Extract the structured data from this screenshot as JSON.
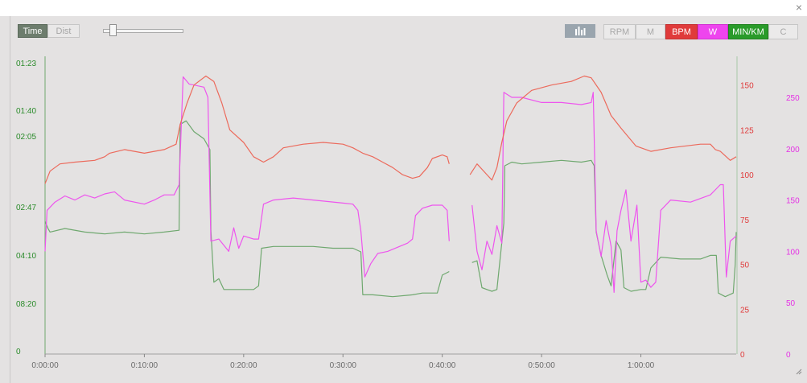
{
  "window": {
    "close_glyph": "×"
  },
  "toolbar": {
    "time_label": "Time",
    "dist_label": "Dist",
    "bars_icon": "bar-chart-icon",
    "metrics": [
      "RPM",
      "M",
      "BPM",
      "W",
      "MIN/KM",
      "C"
    ]
  },
  "colors": {
    "bpm": "#ec6a5c",
    "watts": "#ee55ee",
    "pace": "#6fa86f",
    "bpm_axis": "#e03b3b",
    "watts_axis": "#e530e5",
    "pace_axis": "#2a8b2a"
  },
  "chart_data": {
    "type": "line",
    "x_ticks": [
      "0:00:00",
      "0:10:00",
      "0:20:00",
      "0:30:00",
      "0:40:00",
      "0:50:00",
      "1:00:00"
    ],
    "x_range_minutes": [
      0,
      69.6
    ],
    "grid": false,
    "pace_ticks": [
      "01:23",
      "01:40",
      "02:05",
      "02:47",
      "04:10",
      "08:20",
      "0"
    ],
    "bpm_ticks": [
      "150",
      "125",
      "100",
      "75",
      "50",
      "25",
      "0"
    ],
    "watts_ticks": [
      "250",
      "200",
      "150",
      "100",
      "50",
      "0"
    ],
    "ylim_bpm": [
      0,
      166
    ],
    "ylim_watts": [
      0,
      290
    ],
    "series": [
      {
        "name": "BPM",
        "segments": [
          [
            [
              0,
              95
            ],
            [
              0.5,
              102
            ],
            [
              1.5,
              106
            ],
            [
              3,
              107
            ],
            [
              5,
              108
            ],
            [
              6,
              110
            ],
            [
              6.5,
              112
            ],
            [
              8,
              114
            ],
            [
              10,
              112
            ],
            [
              12,
              114
            ],
            [
              13.2,
              117
            ],
            [
              13.6,
              128
            ],
            [
              14.3,
              140
            ],
            [
              15,
              150
            ],
            [
              16.2,
              155
            ],
            [
              17,
              152
            ],
            [
              17.8,
              140
            ],
            [
              18.6,
              125
            ],
            [
              20,
              118
            ],
            [
              21,
              110
            ],
            [
              22,
              107
            ],
            [
              23,
              110
            ],
            [
              24,
              115
            ],
            [
              26,
              117
            ],
            [
              28,
              118
            ],
            [
              30,
              117
            ],
            [
              31,
              115
            ],
            [
              32,
              112
            ],
            [
              33,
              110
            ],
            [
              34,
              107
            ],
            [
              35,
              104
            ],
            [
              36,
              100
            ],
            [
              37,
              98
            ],
            [
              37.7,
              99
            ],
            [
              38.5,
              104
            ],
            [
              39,
              109
            ],
            [
              40,
              111
            ],
            [
              40.5,
              110
            ],
            [
              40.7,
              106
            ]
          ],
          [
            [
              42.8,
              100
            ],
            [
              43.5,
              106
            ],
            [
              44.5,
              100
            ],
            [
              45,
              97
            ],
            [
              45.5,
              104
            ],
            [
              46,
              118
            ],
            [
              46.5,
              130
            ],
            [
              47.5,
              140
            ],
            [
              49,
              147
            ],
            [
              51,
              150
            ],
            [
              53,
              152
            ],
            [
              54.3,
              155
            ],
            [
              55,
              154
            ],
            [
              56,
              146
            ],
            [
              57,
              133
            ],
            [
              58,
              126
            ],
            [
              59.5,
              116
            ],
            [
              61,
              113
            ],
            [
              63,
              115
            ],
            [
              66,
              117
            ],
            [
              67,
              117
            ],
            [
              67.5,
              114
            ],
            [
              68,
              113
            ],
            [
              69,
              108
            ],
            [
              69.6,
              110
            ]
          ]
        ]
      },
      {
        "name": "W",
        "segments": [
          [
            [
              0,
              100
            ],
            [
              0.2,
              140
            ],
            [
              1,
              148
            ],
            [
              2,
              154
            ],
            [
              3,
              150
            ],
            [
              4,
              155
            ],
            [
              5,
              152
            ],
            [
              6,
              156
            ],
            [
              7,
              158
            ],
            [
              8,
              150
            ],
            [
              10,
              146
            ],
            [
              11,
              150
            ],
            [
              12,
              155
            ],
            [
              13,
              155
            ],
            [
              13.5,
              165
            ],
            [
              13.9,
              270
            ],
            [
              14.5,
              263
            ],
            [
              15,
              262
            ],
            [
              16,
              260
            ],
            [
              16.4,
              250
            ],
            [
              16.7,
              110
            ],
            [
              17.5,
              112
            ],
            [
              18.5,
              100
            ],
            [
              19,
              123
            ],
            [
              19.5,
              103
            ],
            [
              20,
              115
            ],
            [
              21,
              112
            ],
            [
              21.5,
              112
            ],
            [
              22,
              146
            ],
            [
              23,
              150
            ],
            [
              25,
              152
            ],
            [
              27,
              150
            ],
            [
              30,
              147
            ],
            [
              31,
              146
            ],
            [
              31.5,
              140
            ],
            [
              31.8,
              120
            ],
            [
              32.2,
              75
            ],
            [
              32.8,
              88
            ],
            [
              33.5,
              98
            ],
            [
              34.5,
              100
            ],
            [
              35.5,
              104
            ],
            [
              36.5,
              108
            ],
            [
              37,
              112
            ],
            [
              37.3,
              135
            ],
            [
              38,
              142
            ],
            [
              39,
              145
            ],
            [
              40,
              145
            ],
            [
              40.5,
              140
            ],
            [
              40.7,
              110
            ]
          ],
          [
            [
              43,
              145
            ],
            [
              43.5,
              100
            ],
            [
              44,
              82
            ],
            [
              44.5,
              110
            ],
            [
              45,
              97
            ],
            [
              45.5,
              125
            ],
            [
              46,
              108
            ],
            [
              46.2,
              255
            ],
            [
              47,
              250
            ],
            [
              48,
              250
            ],
            [
              50,
              245
            ],
            [
              52,
              245
            ],
            [
              54,
              243
            ],
            [
              55,
              245
            ],
            [
              55.2,
              255
            ],
            [
              55.5,
              120
            ],
            [
              56,
              95
            ],
            [
              56.5,
              130
            ],
            [
              57,
              105
            ],
            [
              57.3,
              60
            ],
            [
              57.6,
              120
            ],
            [
              58,
              140
            ],
            [
              58.5,
              160
            ],
            [
              59,
              110
            ],
            [
              59.6,
              145
            ],
            [
              60,
              70
            ],
            [
              60.5,
              72
            ],
            [
              61,
              65
            ],
            [
              61.5,
              70
            ],
            [
              62,
              140
            ],
            [
              63,
              150
            ],
            [
              65,
              148
            ],
            [
              67,
              155
            ],
            [
              68,
              165
            ],
            [
              68.3,
              165
            ],
            [
              68.6,
              75
            ],
            [
              69,
              110
            ],
            [
              69.6,
              115
            ]
          ]
        ]
      },
      {
        "name": "MIN/KM",
        "segments": [
          [
            [
              0,
              74
            ],
            [
              0.3,
              70
            ],
            [
              0.5,
              68
            ],
            [
              2,
              70
            ],
            [
              4,
              68
            ],
            [
              6,
              67
            ],
            [
              8,
              68
            ],
            [
              10,
              67
            ],
            [
              12,
              68
            ],
            [
              13.5,
              69
            ],
            [
              13.6,
              128
            ],
            [
              14.2,
              130
            ],
            [
              15,
              124
            ],
            [
              16,
              120
            ],
            [
              16.6,
              114
            ],
            [
              16.7,
              69
            ],
            [
              17,
              40
            ],
            [
              17.5,
              42
            ],
            [
              18,
              36
            ],
            [
              20,
              36
            ],
            [
              21,
              36
            ],
            [
              21.5,
              38
            ],
            [
              21.8,
              59
            ],
            [
              23,
              60
            ],
            [
              25,
              60
            ],
            [
              27,
              60
            ],
            [
              29,
              59
            ],
            [
              31,
              59
            ],
            [
              31.8,
              57
            ],
            [
              32,
              33
            ],
            [
              33,
              33
            ],
            [
              35,
              32
            ],
            [
              37,
              33
            ],
            [
              38,
              34
            ],
            [
              39.5,
              34
            ],
            [
              40,
              44
            ],
            [
              40.7,
              46
            ]
          ],
          [
            [
              43,
              51
            ],
            [
              43.5,
              52
            ],
            [
              44,
              37
            ],
            [
              44.5,
              36
            ],
            [
              45,
              35
            ],
            [
              45.5,
              36
            ],
            [
              46.2,
              73
            ],
            [
              46.3,
              105
            ],
            [
              47,
              107
            ],
            [
              48,
              106
            ],
            [
              50,
              107
            ],
            [
              52,
              108
            ],
            [
              54,
              107
            ],
            [
              55,
              108
            ],
            [
              55.3,
              105
            ],
            [
              55.5,
              68
            ],
            [
              56,
              55
            ],
            [
              56.6,
              44
            ],
            [
              57,
              38
            ],
            [
              57.5,
              63
            ],
            [
              58,
              58
            ],
            [
              58.3,
              37
            ],
            [
              59,
              35
            ],
            [
              60,
              36
            ],
            [
              60.5,
              36
            ],
            [
              61,
              48
            ],
            [
              62,
              54
            ],
            [
              64,
              53
            ],
            [
              66,
              53
            ],
            [
              67,
              55
            ],
            [
              67.6,
              55
            ],
            [
              67.8,
              34
            ],
            [
              68.5,
              32
            ],
            [
              69.3,
              34
            ],
            [
              69.5,
              50
            ],
            [
              69.6,
              68
            ]
          ]
        ]
      }
    ]
  }
}
